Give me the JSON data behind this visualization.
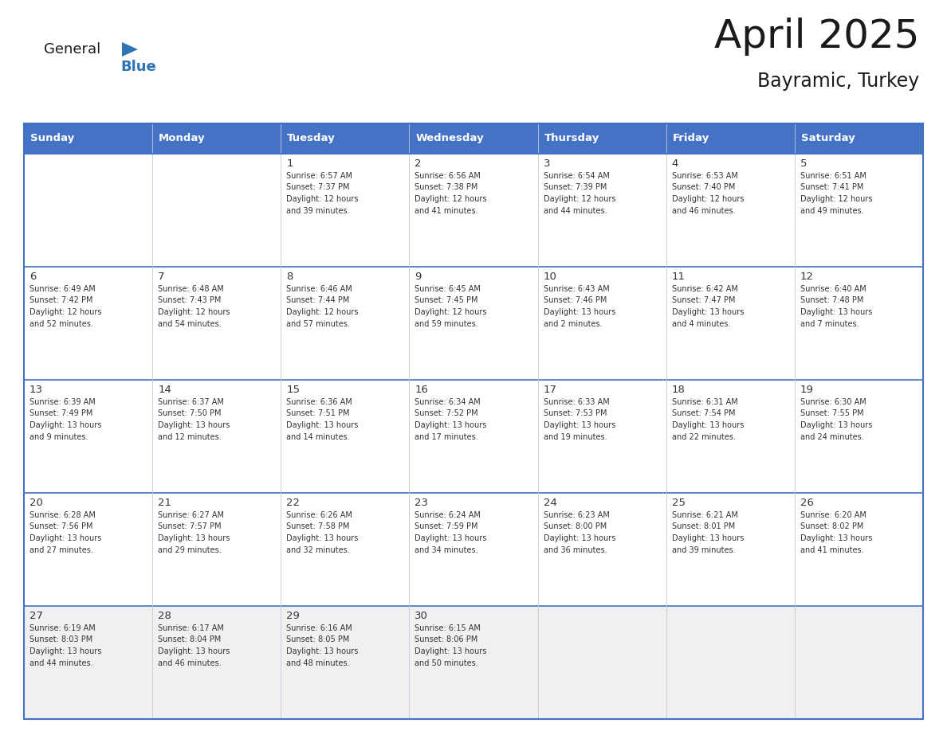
{
  "title": "April 2025",
  "subtitle": "Bayramic, Turkey",
  "header_bg_color": "#4472C4",
  "header_text_color": "#FFFFFF",
  "cell_bg_color": "#FFFFFF",
  "last_row_bg_color": "#F0F0F0",
  "border_color": "#4472C4",
  "grid_line_color": "#C0C8D8",
  "text_color": "#333333",
  "day_names": [
    "Sunday",
    "Monday",
    "Tuesday",
    "Wednesday",
    "Thursday",
    "Friday",
    "Saturday"
  ],
  "weeks": [
    [
      {
        "day": "",
        "info": ""
      },
      {
        "day": "",
        "info": ""
      },
      {
        "day": "1",
        "info": "Sunrise: 6:57 AM\nSunset: 7:37 PM\nDaylight: 12 hours\nand 39 minutes."
      },
      {
        "day": "2",
        "info": "Sunrise: 6:56 AM\nSunset: 7:38 PM\nDaylight: 12 hours\nand 41 minutes."
      },
      {
        "day": "3",
        "info": "Sunrise: 6:54 AM\nSunset: 7:39 PM\nDaylight: 12 hours\nand 44 minutes."
      },
      {
        "day": "4",
        "info": "Sunrise: 6:53 AM\nSunset: 7:40 PM\nDaylight: 12 hours\nand 46 minutes."
      },
      {
        "day": "5",
        "info": "Sunrise: 6:51 AM\nSunset: 7:41 PM\nDaylight: 12 hours\nand 49 minutes."
      }
    ],
    [
      {
        "day": "6",
        "info": "Sunrise: 6:49 AM\nSunset: 7:42 PM\nDaylight: 12 hours\nand 52 minutes."
      },
      {
        "day": "7",
        "info": "Sunrise: 6:48 AM\nSunset: 7:43 PM\nDaylight: 12 hours\nand 54 minutes."
      },
      {
        "day": "8",
        "info": "Sunrise: 6:46 AM\nSunset: 7:44 PM\nDaylight: 12 hours\nand 57 minutes."
      },
      {
        "day": "9",
        "info": "Sunrise: 6:45 AM\nSunset: 7:45 PM\nDaylight: 12 hours\nand 59 minutes."
      },
      {
        "day": "10",
        "info": "Sunrise: 6:43 AM\nSunset: 7:46 PM\nDaylight: 13 hours\nand 2 minutes."
      },
      {
        "day": "11",
        "info": "Sunrise: 6:42 AM\nSunset: 7:47 PM\nDaylight: 13 hours\nand 4 minutes."
      },
      {
        "day": "12",
        "info": "Sunrise: 6:40 AM\nSunset: 7:48 PM\nDaylight: 13 hours\nand 7 minutes."
      }
    ],
    [
      {
        "day": "13",
        "info": "Sunrise: 6:39 AM\nSunset: 7:49 PM\nDaylight: 13 hours\nand 9 minutes."
      },
      {
        "day": "14",
        "info": "Sunrise: 6:37 AM\nSunset: 7:50 PM\nDaylight: 13 hours\nand 12 minutes."
      },
      {
        "day": "15",
        "info": "Sunrise: 6:36 AM\nSunset: 7:51 PM\nDaylight: 13 hours\nand 14 minutes."
      },
      {
        "day": "16",
        "info": "Sunrise: 6:34 AM\nSunset: 7:52 PM\nDaylight: 13 hours\nand 17 minutes."
      },
      {
        "day": "17",
        "info": "Sunrise: 6:33 AM\nSunset: 7:53 PM\nDaylight: 13 hours\nand 19 minutes."
      },
      {
        "day": "18",
        "info": "Sunrise: 6:31 AM\nSunset: 7:54 PM\nDaylight: 13 hours\nand 22 minutes."
      },
      {
        "day": "19",
        "info": "Sunrise: 6:30 AM\nSunset: 7:55 PM\nDaylight: 13 hours\nand 24 minutes."
      }
    ],
    [
      {
        "day": "20",
        "info": "Sunrise: 6:28 AM\nSunset: 7:56 PM\nDaylight: 13 hours\nand 27 minutes."
      },
      {
        "day": "21",
        "info": "Sunrise: 6:27 AM\nSunset: 7:57 PM\nDaylight: 13 hours\nand 29 minutes."
      },
      {
        "day": "22",
        "info": "Sunrise: 6:26 AM\nSunset: 7:58 PM\nDaylight: 13 hours\nand 32 minutes."
      },
      {
        "day": "23",
        "info": "Sunrise: 6:24 AM\nSunset: 7:59 PM\nDaylight: 13 hours\nand 34 minutes."
      },
      {
        "day": "24",
        "info": "Sunrise: 6:23 AM\nSunset: 8:00 PM\nDaylight: 13 hours\nand 36 minutes."
      },
      {
        "day": "25",
        "info": "Sunrise: 6:21 AM\nSunset: 8:01 PM\nDaylight: 13 hours\nand 39 minutes."
      },
      {
        "day": "26",
        "info": "Sunrise: 6:20 AM\nSunset: 8:02 PM\nDaylight: 13 hours\nand 41 minutes."
      }
    ],
    [
      {
        "day": "27",
        "info": "Sunrise: 6:19 AM\nSunset: 8:03 PM\nDaylight: 13 hours\nand 44 minutes."
      },
      {
        "day": "28",
        "info": "Sunrise: 6:17 AM\nSunset: 8:04 PM\nDaylight: 13 hours\nand 46 minutes."
      },
      {
        "day": "29",
        "info": "Sunrise: 6:16 AM\nSunset: 8:05 PM\nDaylight: 13 hours\nand 48 minutes."
      },
      {
        "day": "30",
        "info": "Sunrise: 6:15 AM\nSunset: 8:06 PM\nDaylight: 13 hours\nand 50 minutes."
      },
      {
        "day": "",
        "info": ""
      },
      {
        "day": "",
        "info": ""
      },
      {
        "day": "",
        "info": ""
      }
    ]
  ],
  "logo_text1": "General",
  "logo_text2": "Blue",
  "logo_text1_color": "#1a1a1a",
  "logo_text2_color": "#2E75B6",
  "logo_triangle_color": "#2E75B6",
  "title_color": "#1a1a1a",
  "subtitle_color": "#1a1a1a"
}
